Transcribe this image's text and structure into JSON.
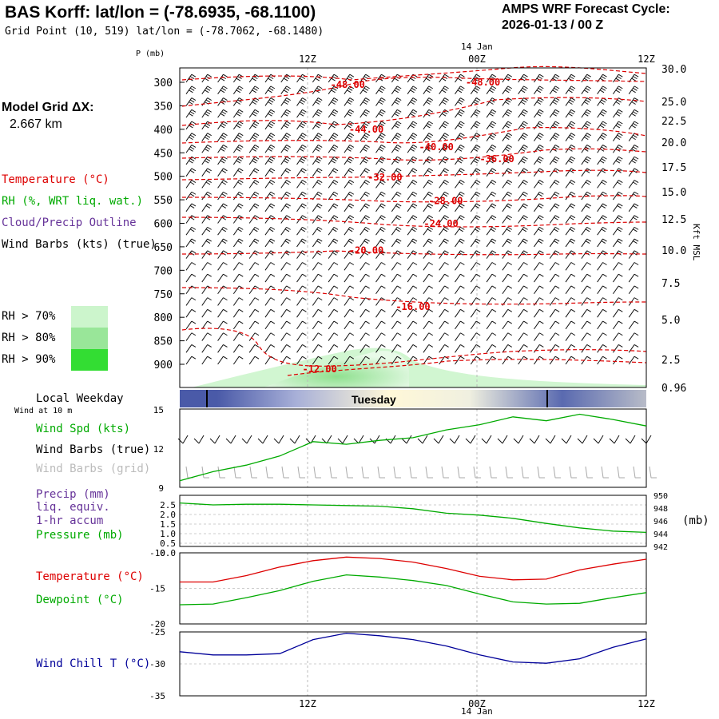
{
  "header": {
    "title": "BAS Korff:  lat/lon = (-78.6935, -68.1100)",
    "grid_point": "Grid Point (10, 519) lat/lon = (-78.7062, -68.1480)",
    "cycle_label": "AMPS WRF Forecast Cycle:",
    "cycle_value": "2026-01-13 / 00  Z",
    "model_grid_label": "Model Grid ΔX:",
    "model_grid_value": "2.667 km"
  },
  "colors": {
    "temperature": "#dd0000",
    "rh": "#00aa00",
    "cloud": "#663399",
    "wind_grid": "#aaaaaa",
    "wind_chill": "#000099",
    "rh70": "#ccf5cc",
    "rh80": "#99e699",
    "rh90": "#33dd33",
    "bar_dark": "#4a5aa8",
    "bar_light": "#fff8d8"
  },
  "legend": {
    "temperature": "Temperature (°C)",
    "rh": "RH (%, WRT liq. wat.)",
    "cloud": "Cloud/Precip Outline",
    "wind": "Wind Barbs (kts) (true)",
    "rh70": "RH > 70%",
    "rh80": "RH > 80%",
    "rh90": "RH > 90%"
  },
  "time_axis": {
    "date_label": "14 Jan",
    "ticks": [
      "12Z",
      "00Z",
      "12Z"
    ]
  },
  "weekday_bar": {
    "label": "Local Weekday",
    "wind_note": "Wind at 10 m",
    "day": "Tuesday"
  },
  "sfc_legend": {
    "wind_spd": "Wind Spd (kts)",
    "wind_barbs": "Wind Barbs (true)",
    "wind_grid": "Wind Barbs (grid)",
    "precip1": "Precip (mm)",
    "precip2": "liq. equiv.",
    "precip3": "1-hr accum",
    "pressure": "Pressure (mb)",
    "pressure_unit": "(mb)",
    "temperature": "Temperature (°C)",
    "dewpoint": "Dewpoint (°C)",
    "wind_chill": "Wind Chill T (°C)"
  },
  "chart_data": [
    {
      "type": "contour",
      "panel": "upper_air",
      "ylabel": "P (mb)",
      "right_label": "Kft MSL",
      "pressure_ticks": [
        300,
        350,
        400,
        450,
        500,
        550,
        600,
        650,
        700,
        750,
        800,
        850,
        900
      ],
      "height_ticks": [
        "30.0",
        "25.0",
        "22.5",
        "20.0",
        "17.5",
        "15.0",
        "12.5",
        "10.0",
        "7.5",
        "5.0",
        "2.5",
        "0.96"
      ],
      "isotherm_labels": [
        {
          "label": "-48.00",
          "p": 305,
          "t": 0.36
        },
        {
          "label": "-48.00",
          "p": 300,
          "t": 0.65
        },
        {
          "label": "-44.00",
          "p": 400,
          "t": 0.4
        },
        {
          "label": "-40.00",
          "p": 438,
          "t": 0.55
        },
        {
          "label": "-36.00",
          "p": 463,
          "t": 0.68
        },
        {
          "label": "-32.00",
          "p": 502,
          "t": 0.44
        },
        {
          "label": "-28.00",
          "p": 552,
          "t": 0.57
        },
        {
          "label": "-24.00",
          "p": 601,
          "t": 0.56
        },
        {
          "label": "-20.00",
          "p": 658,
          "t": 0.4
        },
        {
          "label": "-16.00",
          "p": 778,
          "t": 0.5
        },
        {
          "label": "-12.00",
          "p": 910,
          "t": 0.3
        }
      ]
    },
    {
      "type": "line",
      "panel": "surface_wind",
      "series": [
        {
          "name": "Wind Spd (kts)",
          "values": [
            9.5,
            10.2,
            10.7,
            11.4,
            12.5,
            12.3,
            12.6,
            12.8,
            13.4,
            13.8,
            14.4,
            14.1,
            14.6,
            14.2,
            13.7
          ]
        }
      ],
      "y_ticks": [
        "15",
        "12",
        "9"
      ],
      "ylim": [
        9,
        15
      ]
    },
    {
      "type": "line",
      "panel": "precip_pressure",
      "series": [
        {
          "name": "Pressure (mb)",
          "values": [
            948.8,
            948.5,
            948.6,
            948.6,
            948.5,
            948.4,
            948.3,
            947.9,
            947.2,
            946.9,
            946.4,
            945.6,
            944.9,
            944.4,
            944.2
          ]
        }
      ],
      "left_ticks": [
        "2.5",
        "2.0",
        "1.5",
        "1.0",
        "0.5",
        "0.0"
      ],
      "right_ticks": [
        "950",
        "948",
        "946",
        "944",
        "942"
      ],
      "ylim": [
        942,
        950
      ]
    },
    {
      "type": "line",
      "panel": "temperature",
      "series": [
        {
          "name": "Temperature (°C)",
          "values": [
            -14.1,
            -14.1,
            -13.2,
            -12.0,
            -11.1,
            -10.6,
            -10.8,
            -11.3,
            -12.2,
            -13.3,
            -13.8,
            -13.7,
            -12.4,
            -11.6,
            -10.9
          ]
        },
        {
          "name": "Dewpoint (°C)",
          "values": [
            -17.3,
            -17.2,
            -16.3,
            -15.3,
            -14.0,
            -13.1,
            -13.4,
            -13.9,
            -14.6,
            -15.8,
            -16.9,
            -17.2,
            -17.1,
            -16.3,
            -15.6
          ]
        }
      ],
      "y_ticks": [
        "-10",
        "-15",
        "-20"
      ],
      "ylim": [
        -20,
        -10
      ]
    },
    {
      "type": "line",
      "panel": "wind_chill",
      "series": [
        {
          "name": "Wind Chill T (°C)",
          "values": [
            -28.1,
            -28.6,
            -28.6,
            -28.4,
            -26.2,
            -25.2,
            -25.6,
            -26.2,
            -27.2,
            -28.6,
            -29.7,
            -29.9,
            -29.2,
            -27.4,
            -26.1
          ]
        }
      ],
      "y_ticks": [
        "-25",
        "-30",
        "-35"
      ],
      "ylim": [
        -35,
        -25
      ]
    }
  ]
}
